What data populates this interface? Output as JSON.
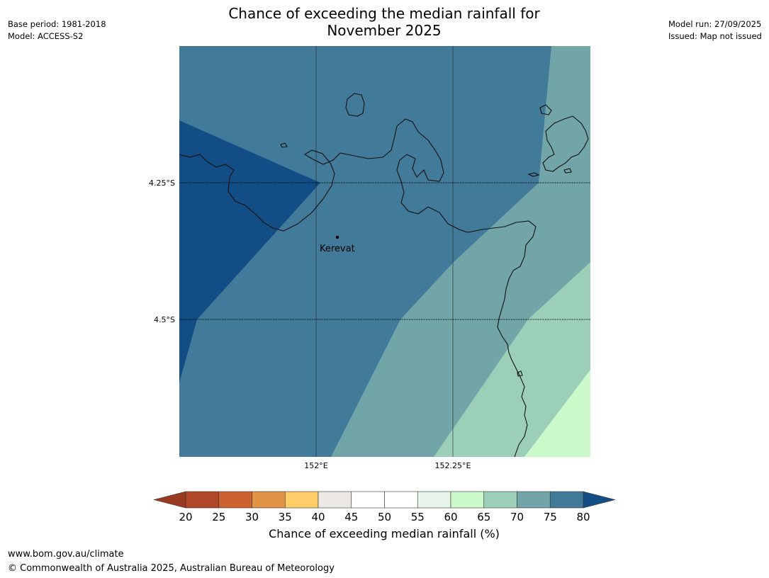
{
  "header": {
    "title_line1": "Chance of exceeding the median rainfall for",
    "title_line2": "November 2025",
    "base_period": "Base period: 1981-2018",
    "model": "Model: ACCESS-S2",
    "model_run": "Model run: 27/09/2025",
    "issued": "Issued: Map not issued"
  },
  "map": {
    "lat_labels": [
      "4.25°S",
      "4.5°S"
    ],
    "lon_labels": [
      "152°E",
      "152.25°E"
    ],
    "place": "Kerevat",
    "zone_colors": {
      "75_80": "#427a99",
      "above_80": "#134d86",
      "70_75": "#71a5a8",
      "65_70": "#9ccfb8",
      "60_65": "#cbf9c9"
    }
  },
  "colorbar": {
    "label": "Chance of exceeding median rainfall (%)",
    "ticks": [
      "20",
      "25",
      "30",
      "35",
      "40",
      "45",
      "50",
      "55",
      "60",
      "65",
      "70",
      "75",
      "80"
    ],
    "colors": [
      "#b04726",
      "#cc6230",
      "#e29446",
      "#fecd68",
      "#ece8e3",
      "#ffffff",
      "#ffffff",
      "#e8f5e9",
      "#cbf9c9",
      "#9ccfb8",
      "#71a5a8",
      "#427a99"
    ],
    "under_color": "#9a3a22",
    "over_color": "#134d86"
  },
  "footer": {
    "url": "www.bom.gov.au/climate",
    "copyright": "© Commonwealth of Australia 2025, Australian Bureau of Meteorology"
  }
}
